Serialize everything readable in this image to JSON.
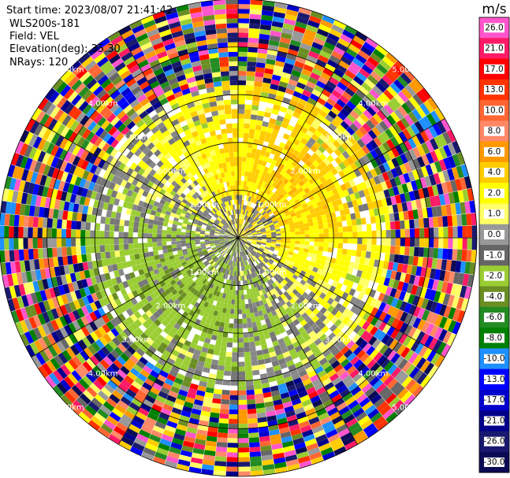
{
  "info": {
    "start_time": "Start time: 2023/08/07 21:41:42",
    "instrument": "WLS200s-181",
    "field": "Field: VEL",
    "elevation": "Elevation(deg): 35.30",
    "nrays": "NRays: 120"
  },
  "chart_data": {
    "type": "heatmap",
    "projection": "polar (PPI)",
    "nrays": 120,
    "range_unit": "km",
    "max_range_km": 5.0,
    "range_rings_km": [
      1.0,
      2.0,
      3.0,
      4.0,
      5.0
    ],
    "range_ring_labels": [
      "1.00km",
      "2.00km",
      "3.00km",
      "4.00km",
      "5.00km"
    ],
    "range_rings_visible": 5,
    "azimuth_spokes_deg": [
      0,
      30,
      60,
      90,
      120,
      150,
      180,
      210,
      240,
      270,
      300,
      330
    ],
    "data_description": "Doppler radial velocity; mostly 0 to +4 m/s (yellow/orange) to the north and east, -1 to -6 m/s (green) to the south-west, near zero (gray) close to the center, noisy random values beyond ~3.2 km",
    "colorbar": {
      "unit": "m/s",
      "ticks": [
        "26.0",
        "21.0",
        "17.0",
        "13.0",
        "10.0",
        "8.0",
        "6.0",
        "4.0",
        "2.0",
        "1.0",
        "0.0",
        "-1.0",
        "-2.0",
        "-4.0",
        "-6.0",
        "-8.0",
        "-10.0",
        "-13.0",
        "-17.0",
        "-21.0",
        "-26.0",
        "-30.0"
      ],
      "colors": [
        "#ff55cc",
        "#ff1a66",
        "#ff0000",
        "#ff3300",
        "#ff6633",
        "#ff8866",
        "#ff9900",
        "#ffcc00",
        "#ffff00",
        "#ffff66",
        "#999999",
        "#666666",
        "#9acd32",
        "#6b8e23",
        "#228b22",
        "#008000",
        "#1e90ff",
        "#0000ff",
        "#0000cd",
        "#00008b",
        "#191970",
        "#0b0b55"
      ]
    }
  }
}
